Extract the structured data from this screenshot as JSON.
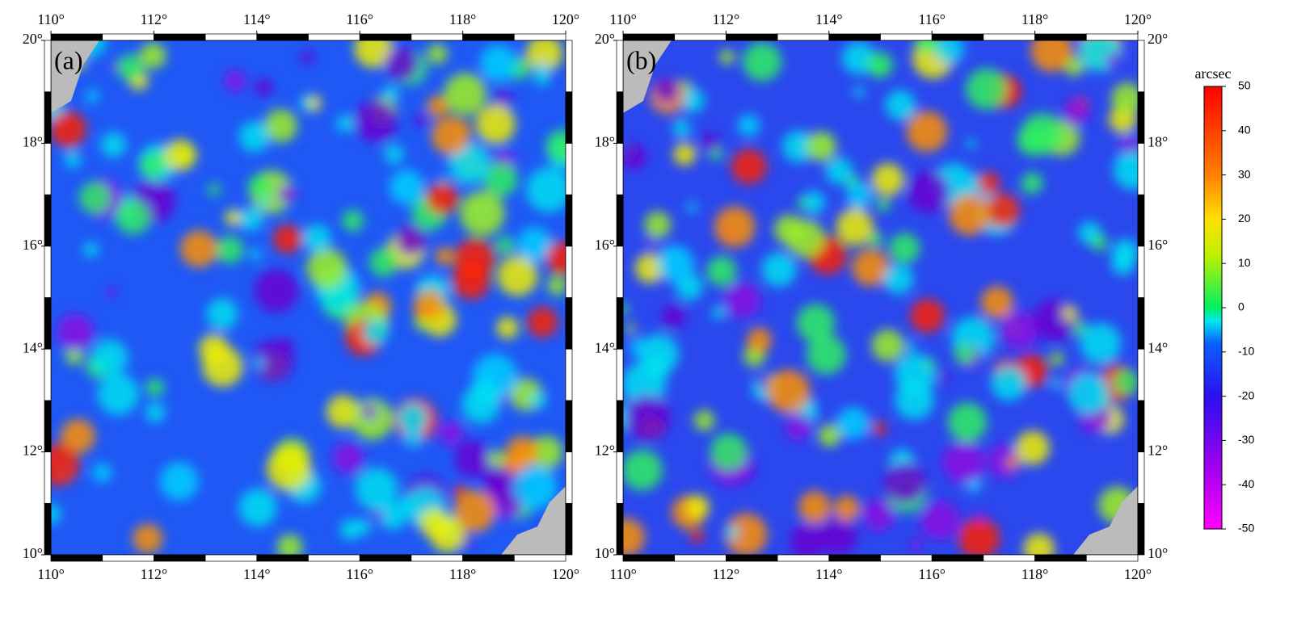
{
  "panels": [
    {
      "label": "(a)"
    },
    {
      "label": "(b)"
    }
  ],
  "map": {
    "xlim": [
      110,
      120
    ],
    "ylim": [
      10,
      20
    ],
    "xticks": [
      {
        "value": 110,
        "label": "110°"
      },
      {
        "value": 112,
        "label": "112°"
      },
      {
        "value": 114,
        "label": "114°"
      },
      {
        "value": 116,
        "label": "116°"
      },
      {
        "value": 118,
        "label": "118°"
      },
      {
        "value": 120,
        "label": "120°"
      }
    ],
    "yticks": [
      {
        "value": 10,
        "label": "10°"
      },
      {
        "value": 12,
        "label": "12°"
      },
      {
        "value": 14,
        "label": "14°"
      },
      {
        "value": 16,
        "label": "16°"
      },
      {
        "value": 18,
        "label": "18°"
      },
      {
        "value": 20,
        "label": "20°"
      }
    ]
  },
  "colorbar": {
    "title": "arcsec",
    "lim": [
      -50,
      50
    ],
    "ticks": [
      50,
      40,
      30,
      20,
      10,
      0,
      -10,
      -20,
      -30,
      -40,
      -50
    ]
  }
}
